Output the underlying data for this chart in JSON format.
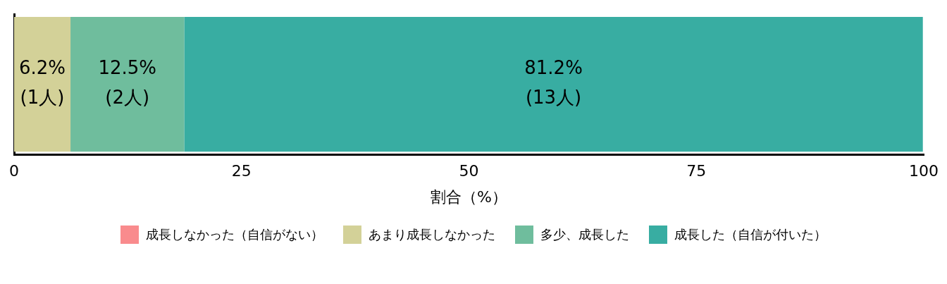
{
  "chart_data": {
    "type": "bar",
    "orientation": "horizontal",
    "stacked": true,
    "categories": [
      null
    ],
    "series": [
      {
        "name": "成長しなかった（自信がない）",
        "color": "#f98b8d",
        "values": [
          0
        ],
        "value_labels": [
          null
        ]
      },
      {
        "name": "あまり成長しなかった",
        "color": "#d3d198",
        "values": [
          6.2
        ],
        "value_labels": [
          "6.2%\n(1人)"
        ]
      },
      {
        "name": "多少、成長した",
        "color": "#6fbd9d",
        "values": [
          12.5
        ],
        "value_labels": [
          "12.5%\n(2人)"
        ]
      },
      {
        "name": "成長した（自信が付いた）",
        "color": "#38ada2",
        "values": [
          81.2
        ],
        "value_labels": [
          "81.2%\n(13人)"
        ]
      }
    ],
    "xlim": [
      0,
      100
    ],
    "xticks": [
      0,
      25,
      50,
      75,
      100
    ],
    "xlabel": "割合（%）",
    "legend": "bottom",
    "grid": false
  }
}
